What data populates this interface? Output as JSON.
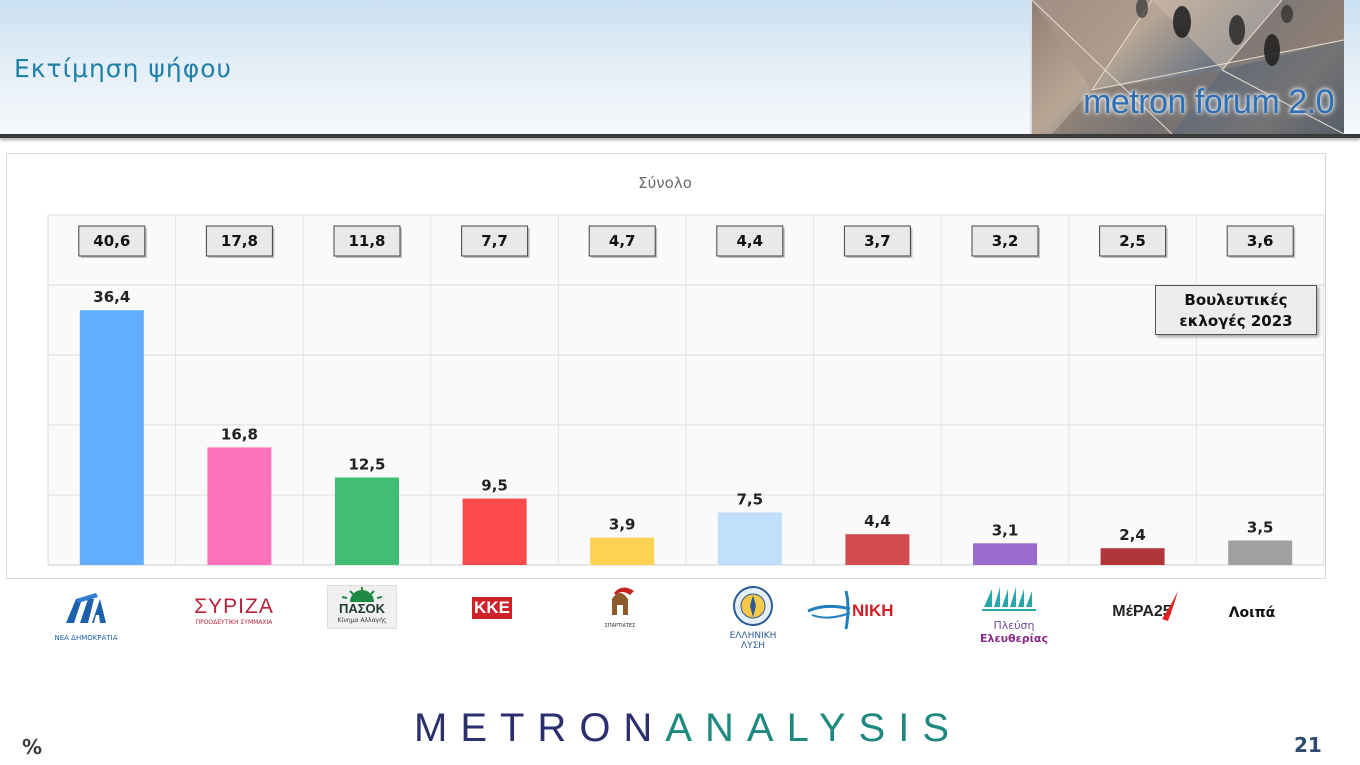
{
  "header": {
    "title": "Εκτίμηση ψήφου",
    "brand": "metron forum 2.0"
  },
  "chart_data": {
    "type": "bar",
    "title": "Σύνολο",
    "categories": [
      "ΝΔ",
      "ΣΥΡΙΖΑ",
      "ΠΑΣΟΚ",
      "ΚΚΕ",
      "ΣΠΑΡΤΙΑΤΕΣ",
      "ΕΛΛΗΝΙΚΗ ΛΥΣΗ",
      "ΝΙΚΗ",
      "Πλεύση Ελευθερίας",
      "ΜέΡΑ25",
      "Λοιπά"
    ],
    "series": [
      {
        "name": "",
        "values": [
          40.6,
          17.8,
          11.8,
          7.7,
          4.7,
          4.4,
          3.7,
          3.2,
          2.5,
          3.6
        ],
        "labels": [
          "40,6",
          "17,8",
          "11,8",
          "7,7",
          "4,7",
          "4,4",
          "3,7",
          "3,2",
          "2,5",
          "3,6"
        ]
      },
      {
        "name": "Βουλευτικές εκλογές 2023",
        "values": [
          36.4,
          16.8,
          12.5,
          9.5,
          3.9,
          7.5,
          4.4,
          3.1,
          2.4,
          3.5
        ],
        "labels": [
          "36,4",
          "16,8",
          "12,5",
          "9,5",
          "3,9",
          "7,5",
          "4,4",
          "3,1",
          "2,4",
          "3,5"
        ]
      }
    ],
    "bar_colors": [
      "#63aefc",
      "#fc73bb",
      "#41bd75",
      "#fb4b4d",
      "#fdd151",
      "#c0dffa",
      "#d24b4f",
      "#9a6acc",
      "#b0363a",
      "#a0a0a0"
    ],
    "ylim": [
      0,
      50
    ],
    "grid": true,
    "unit": "%"
  },
  "note": {
    "line1": "Βουλευτικές",
    "line2": "εκλογές 2023"
  },
  "parties": {
    "nd": {
      "mark": "ΝΔ",
      "sub": "ΝΕΑ ΔΗΜΟΚΡΑΤΙΑ"
    },
    "syriza": {
      "mark": "ΣΥΡΙΖΑ",
      "sub": "ΠΡΟΟΔΕΥΤΙΚΗ ΣΥΜΜΑΧΙΑ"
    },
    "pasok": {
      "mark": "ΠΑΣΟΚ",
      "sub": "Κίνημα Αλλαγής"
    },
    "kke": {
      "mark": "ΚΚΕ"
    },
    "spartiates": {
      "sub": "ΣΠΑΡΤΙΑΤΕΣ"
    },
    "elliniki_lysi": {
      "line1": "ΕΛΛΗΝΙΚΗ",
      "line2": "ΛΥΣΗ"
    },
    "niki": {
      "mark": "ΝΙΚΗ"
    },
    "plefsi": {
      "line1": "Πλεύση",
      "line2": "Ελευθερίας"
    },
    "mera25": {
      "mark": "ΜέΡΑ25"
    },
    "loipa": {
      "mark": "Λοιπά"
    }
  },
  "footer": {
    "unit": "%",
    "logo_part1": "METRON",
    "logo_part2": "ANALYSIS",
    "page": "21"
  },
  "colors": {
    "title": "#1f80a8",
    "brand": "#2c6fb5",
    "logo_dark": "#2b2f6e",
    "logo_teal": "#1e8a7f"
  }
}
